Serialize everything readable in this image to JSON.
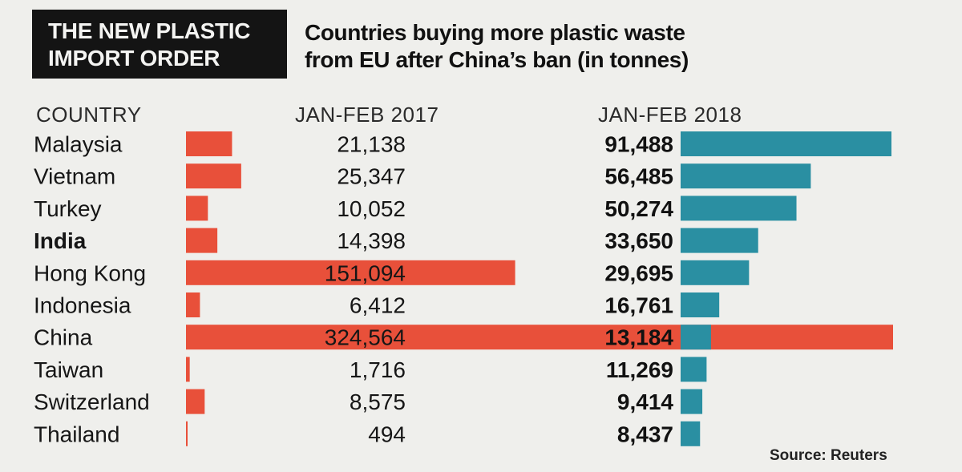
{
  "title": {
    "line1": "THE NEW PLASTIC",
    "line2": "IMPORT ORDER"
  },
  "subtitle": {
    "line1": "Countries buying more plastic waste",
    "line2": "from EU after China’s ban (in tonnes)"
  },
  "source": "Source: Reuters",
  "colors": {
    "bar_2017": "#e8503a",
    "bar_2018": "#2a8fa2",
    "text": "#161616",
    "title_bg": "#141414"
  },
  "chart_data": {
    "type": "bar",
    "title": "Countries buying more plastic waste from EU after China’s ban (in tonnes)",
    "column_headers": {
      "country": "COUNTRY",
      "y2017": "JAN-FEB 2017",
      "y2018": "JAN-FEB 2018"
    },
    "categories": [
      "Malaysia",
      "Vietnam",
      "Turkey",
      "India",
      "Hong Kong",
      "Indonesia",
      "China",
      "Taiwan",
      "Switzerland",
      "Thailand"
    ],
    "highlight": [
      "India"
    ],
    "series": [
      {
        "name": "JAN-FEB 2017",
        "values": [
          21138,
          25347,
          10052,
          14398,
          151094,
          6412,
          324564,
          1716,
          8575,
          494
        ],
        "labels": [
          "21,138",
          "25,347",
          "10,052",
          "14,398",
          "151,094",
          "6,412",
          "324,564",
          "1,716",
          "8,575",
          "494"
        ]
      },
      {
        "name": "JAN-FEB 2018",
        "values": [
          91488,
          56485,
          50274,
          33650,
          29695,
          16761,
          13184,
          11269,
          9414,
          8437
        ],
        "labels": [
          "91,488",
          "56,485",
          "50,274",
          "33,650",
          "29,695",
          "16,761",
          "13,184",
          "11,269",
          "9,414",
          "8,437"
        ]
      }
    ],
    "units": "tonnes"
  }
}
